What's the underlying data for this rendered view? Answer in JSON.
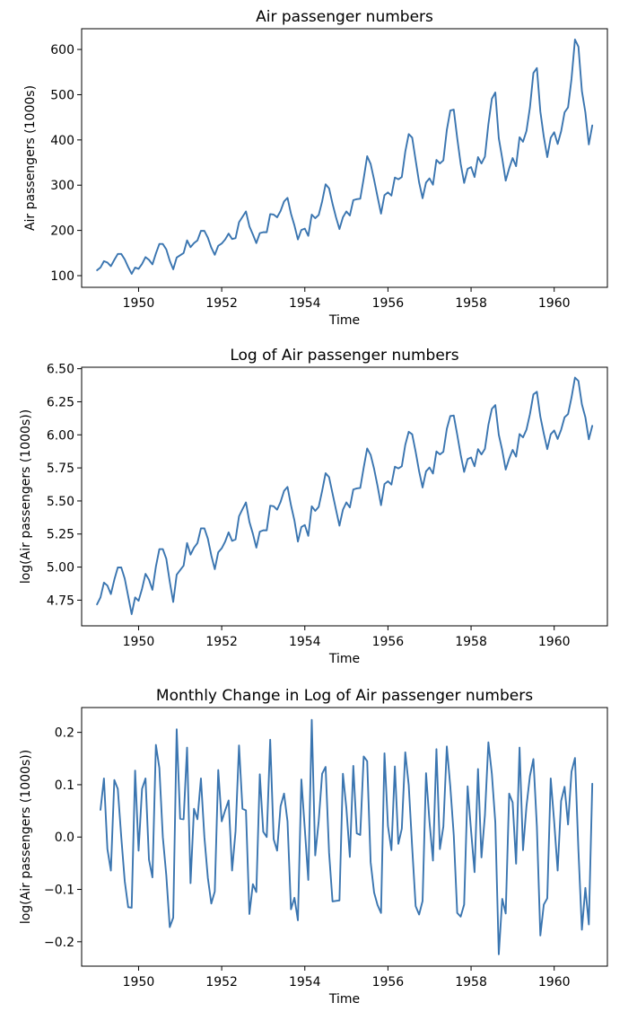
{
  "chart_data": [
    {
      "type": "line",
      "title": "Air passenger numbers",
      "xlabel": "Time",
      "ylabel": "Air passengers (1000s)",
      "xlim": [
        1948.63,
        1961.28
      ],
      "ylim": [
        74.2,
        645.8
      ],
      "xticks": [
        1950,
        1952,
        1954,
        1956,
        1958,
        1960
      ],
      "xtick_labels": [
        "1950",
        "1952",
        "1954",
        "1956",
        "1958",
        "1960"
      ],
      "yticks": [
        100,
        200,
        300,
        400,
        500,
        600
      ],
      "ytick_labels": [
        "100",
        "200",
        "300",
        "400",
        "500",
        "600"
      ],
      "grid": false,
      "series": [
        {
          "name": "passengers",
          "color": "#3a75b0",
          "x_start": 1949.0,
          "x_step": 0.08333333,
          "values": [
            112,
            118,
            132,
            129,
            121,
            135,
            148,
            148,
            136,
            119,
            104,
            118,
            115,
            126,
            141,
            135,
            125,
            149,
            170,
            170,
            158,
            133,
            114,
            140,
            145,
            150,
            178,
            163,
            172,
            178,
            199,
            199,
            184,
            162,
            146,
            166,
            171,
            180,
            193,
            181,
            183,
            218,
            230,
            242,
            209,
            191,
            172,
            194,
            196,
            196,
            236,
            235,
            229,
            243,
            264,
            272,
            237,
            211,
            180,
            201,
            204,
            188,
            235,
            227,
            234,
            264,
            302,
            293,
            259,
            229,
            203,
            229,
            242,
            233,
            267,
            269,
            270,
            315,
            364,
            347,
            312,
            274,
            237,
            278,
            284,
            277,
            317,
            313,
            318,
            374,
            413,
            405,
            355,
            306,
            271,
            306,
            315,
            301,
            356,
            348,
            355,
            422,
            465,
            467,
            404,
            347,
            305,
            336,
            340,
            318,
            362,
            348,
            363,
            435,
            491,
            505,
            404,
            359,
            310,
            337,
            360,
            342,
            406,
            396,
            420,
            472,
            548,
            559,
            463,
            407,
            362,
            405,
            417,
            391,
            419,
            461,
            472,
            535,
            622,
            606,
            508,
            461,
            390,
            432
          ]
        }
      ]
    },
    {
      "type": "line",
      "title": "Log of Air passenger numbers",
      "xlabel": "Time",
      "ylabel": "log(Air passengers (1000s))",
      "xlim": [
        1948.63,
        1961.28
      ],
      "ylim": [
        4.5557,
        6.5111
      ],
      "xticks": [
        1950,
        1952,
        1954,
        1956,
        1958,
        1960
      ],
      "xtick_labels": [
        "1950",
        "1952",
        "1954",
        "1956",
        "1958",
        "1960"
      ],
      "yticks": [
        4.75,
        5.0,
        5.25,
        5.5,
        5.75,
        6.0,
        6.25,
        6.5
      ],
      "ytick_labels": [
        "4.75",
        "5.00",
        "5.25",
        "5.50",
        "5.75",
        "6.00",
        "6.25",
        "6.50"
      ],
      "grid": false,
      "series": [
        {
          "name": "log passengers",
          "color": "#3a75b0",
          "x_start": 1949.0,
          "x_step": 0.08333333,
          "values": [
            4.718,
            4.771,
            4.883,
            4.86,
            4.796,
            4.905,
            4.997,
            4.997,
            4.913,
            4.779,
            4.644,
            4.771,
            4.745,
            4.836,
            4.949,
            4.905,
            4.828,
            5.004,
            5.136,
            5.136,
            5.063,
            4.89,
            4.736,
            4.942,
            4.977,
            5.011,
            5.182,
            5.094,
            5.147,
            5.182,
            5.293,
            5.293,
            5.215,
            5.088,
            4.984,
            5.112,
            5.142,
            5.193,
            5.263,
            5.198,
            5.209,
            5.384,
            5.438,
            5.489,
            5.342,
            5.252,
            5.147,
            5.268,
            5.278,
            5.278,
            5.464,
            5.46,
            5.434,
            5.493,
            5.576,
            5.606,
            5.468,
            5.352,
            5.193,
            5.303,
            5.318,
            5.236,
            5.46,
            5.425,
            5.455,
            5.576,
            5.71,
            5.68,
            5.557,
            5.434,
            5.313,
            5.434,
            5.489,
            5.451,
            5.587,
            5.595,
            5.598,
            5.753,
            5.897,
            5.849,
            5.743,
            5.613,
            5.468,
            5.628,
            5.649,
            5.624,
            5.759,
            5.746,
            5.762,
            5.924,
            6.023,
            6.004,
            5.872,
            5.724,
            5.602,
            5.724,
            5.753,
            5.707,
            5.875,
            5.852,
            5.872,
            6.045,
            6.142,
            6.146,
            6.001,
            5.849,
            5.72,
            5.817,
            5.829,
            5.762,
            5.892,
            5.852,
            5.894,
            6.075,
            6.196,
            6.225,
            6.001,
            5.883,
            5.737,
            5.82,
            5.886,
            5.835,
            6.006,
            5.981,
            6.04,
            6.157,
            6.306,
            6.326,
            6.138,
            6.009,
            5.892,
            6.004,
            6.033,
            5.969,
            6.038,
            6.133,
            6.157,
            6.282,
            6.433,
            6.407,
            6.23,
            6.133,
            5.966,
            6.068
          ]
        }
      ]
    },
    {
      "type": "line",
      "title": "Monthly Change in Log of Air passenger numbers",
      "xlabel": "Time",
      "ylabel": "log(Air passengers (1000s))",
      "xlim": [
        1948.63,
        1961.28
      ],
      "ylim": [
        -0.2466,
        0.2474
      ],
      "xticks": [
        1950,
        1952,
        1954,
        1956,
        1958,
        1960
      ],
      "xtick_labels": [
        "1950",
        "1952",
        "1954",
        "1956",
        "1958",
        "1960"
      ],
      "yticks": [
        -0.2,
        -0.1,
        0.0,
        0.1,
        0.2
      ],
      "ytick_labels": [
        "−0.2",
        "−0.1",
        "0.0",
        "0.1",
        "0.2"
      ],
      "grid": false,
      "series": [
        {
          "name": "monthly change",
          "color": "#3a75b0",
          "x_start": 1949.0833,
          "x_step": 0.08333333,
          "values": [
            0.052,
            0.112,
            -0.023,
            -0.064,
            0.109,
            0.092,
            0.0,
            -0.084,
            -0.134,
            -0.135,
            0.127,
            -0.026,
            0.092,
            0.112,
            -0.043,
            -0.077,
            0.176,
            0.132,
            0.0,
            -0.073,
            -0.172,
            -0.154,
            0.206,
            0.035,
            0.034,
            0.171,
            -0.088,
            0.054,
            0.034,
            0.112,
            0.0,
            -0.078,
            -0.127,
            -0.104,
            0.128,
            0.03,
            0.051,
            0.07,
            -0.064,
            0.011,
            0.175,
            0.054,
            0.051,
            -0.147,
            -0.09,
            -0.105,
            0.12,
            0.01,
            0.0,
            0.186,
            -0.004,
            -0.026,
            0.059,
            0.083,
            0.03,
            -0.138,
            -0.116,
            -0.159,
            0.11,
            0.015,
            -0.082,
            0.224,
            -0.035,
            0.03,
            0.121,
            0.134,
            -0.03,
            -0.123,
            -0.122,
            -0.121,
            0.121,
            0.055,
            -0.038,
            0.136,
            0.007,
            0.004,
            0.154,
            0.145,
            -0.048,
            -0.106,
            -0.13,
            -0.145,
            0.16,
            0.021,
            -0.025,
            0.135,
            -0.013,
            0.016,
            0.162,
            0.099,
            -0.02,
            -0.132,
            -0.148,
            -0.122,
            0.122,
            0.029,
            -0.045,
            0.168,
            -0.023,
            0.02,
            0.173,
            0.097,
            0.004,
            -0.145,
            -0.152,
            -0.129,
            0.097,
            0.012,
            -0.067,
            0.13,
            -0.039,
            0.042,
            0.181,
            0.121,
            0.028,
            -0.224,
            -0.118,
            -0.146,
            0.083,
            0.066,
            -0.051,
            0.171,
            -0.025,
            0.059,
            0.117,
            0.149,
            0.02,
            -0.188,
            -0.129,
            -0.117,
            0.112,
            0.029,
            -0.064,
            0.069,
            0.096,
            0.024,
            0.125,
            0.151,
            -0.026,
            -0.177,
            -0.097,
            -0.167,
            0.102
          ]
        }
      ]
    }
  ]
}
